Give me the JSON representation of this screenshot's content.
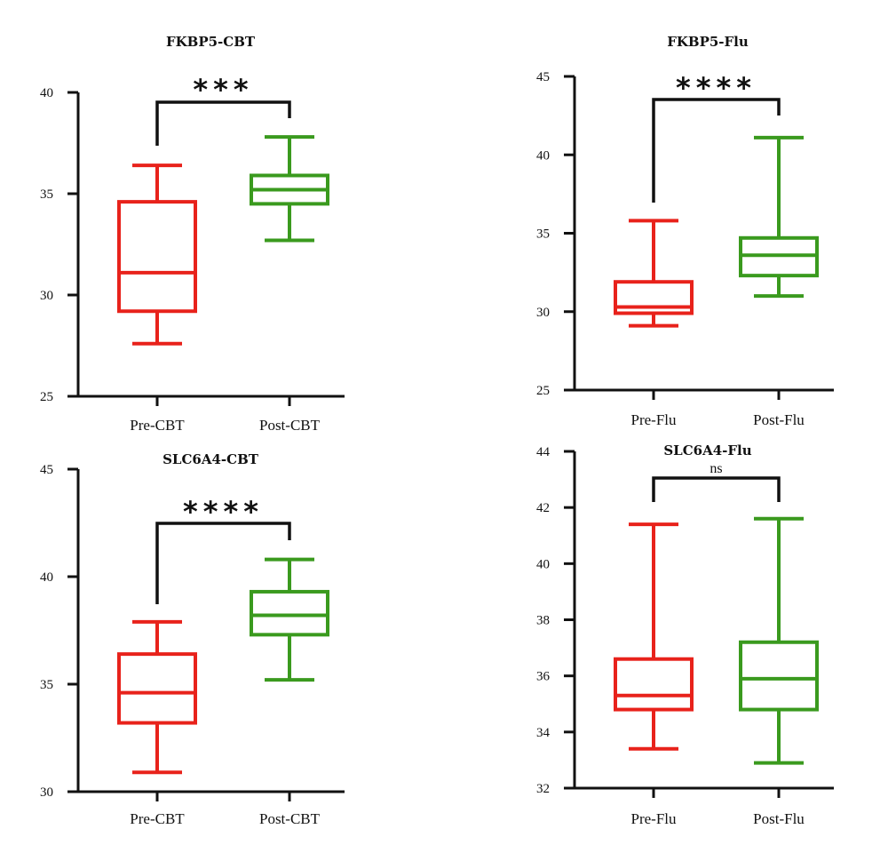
{
  "chart_data": [
    {
      "type": "box",
      "title": "FKBP5-CBT",
      "categories": [
        "Pre-CBT",
        "Post-CBT"
      ],
      "ylim": [
        25,
        40
      ],
      "yticks": [
        "25",
        "30",
        "35",
        "40"
      ],
      "series": [
        {
          "category": "Pre-CBT",
          "color": "#e8221b",
          "min": 27.6,
          "q1": 29.2,
          "median": 31.1,
          "q3": 34.6,
          "max": 36.4
        },
        {
          "category": "Post-CBT",
          "color": "#3a9a1e",
          "min": 32.7,
          "q1": 34.5,
          "median": 35.2,
          "q3": 35.9,
          "max": 37.8
        }
      ],
      "significance": "***"
    },
    {
      "type": "box",
      "title": "FKBP5-Flu",
      "categories": [
        "Pre-Flu",
        "Post-Flu"
      ],
      "ylim": [
        25,
        45
      ],
      "yticks": [
        "25",
        "30",
        "35",
        "40",
        "45"
      ],
      "series": [
        {
          "category": "Pre-Flu",
          "color": "#e8221b",
          "min": 29.1,
          "q1": 29.9,
          "median": 30.3,
          "q3": 31.9,
          "max": 35.8
        },
        {
          "category": "Post-Flu",
          "color": "#3a9a1e",
          "min": 31.0,
          "q1": 32.3,
          "median": 33.6,
          "q3": 34.7,
          "max": 41.1
        }
      ],
      "significance": "****"
    },
    {
      "type": "box",
      "title": "SLC6A4-CBT",
      "categories": [
        "Pre-CBT",
        "Post-CBT"
      ],
      "ylim": [
        30,
        45
      ],
      "yticks": [
        "30",
        "35",
        "40",
        "45"
      ],
      "series": [
        {
          "category": "Pre-CBT",
          "color": "#e8221b",
          "min": 30.9,
          "q1": 33.2,
          "median": 34.6,
          "q3": 36.4,
          "max": 37.9
        },
        {
          "category": "Post-CBT",
          "color": "#3a9a1e",
          "min": 35.2,
          "q1": 37.3,
          "median": 38.2,
          "q3": 39.3,
          "max": 40.8
        }
      ],
      "significance": "****"
    },
    {
      "type": "box",
      "title": "SLC6A4-Flu",
      "categories": [
        "Pre-Flu",
        "Post-Flu"
      ],
      "ylim": [
        32,
        44
      ],
      "yticks": [
        "32",
        "34",
        "36",
        "38",
        "40",
        "42",
        "44"
      ],
      "series": [
        {
          "category": "Pre-Flu",
          "color": "#e8221b",
          "min": 33.4,
          "q1": 34.8,
          "median": 35.3,
          "q3": 36.6,
          "max": 41.4
        },
        {
          "category": "Post-Flu",
          "color": "#3a9a1e",
          "min": 32.9,
          "q1": 34.8,
          "median": 35.9,
          "q3": 37.2,
          "max": 41.6
        }
      ],
      "significance": "ns"
    }
  ]
}
